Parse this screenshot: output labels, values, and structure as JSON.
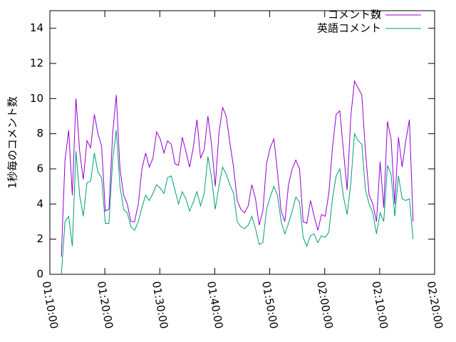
{
  "chart_data": {
    "type": "line",
    "ylabel": "1秒毎のコメント数",
    "xlim": [
      "01:10:00",
      "02:20:00"
    ],
    "xticks": [
      "01:10:00",
      "01:20:00",
      "01:30:00",
      "01:40:00",
      "01:50:00",
      "02:00:00",
      "02:10:00",
      "02:20:00"
    ],
    "ylim": [
      0,
      15
    ],
    "yticks": [
      0,
      2,
      4,
      6,
      8,
      10,
      12,
      14
    ],
    "legend": "top-right",
    "x": [
      "01:12:05",
      "01:12:45",
      "01:13:25",
      "01:14:05",
      "01:14:45",
      "01:15:25",
      "01:16:05",
      "01:16:45",
      "01:17:25",
      "01:18:05",
      "01:18:45",
      "01:19:25",
      "01:20:05",
      "01:20:45",
      "01:21:25",
      "01:22:05",
      "01:22:45",
      "01:23:25",
      "01:24:05",
      "01:24:45",
      "01:25:25",
      "01:26:05",
      "01:26:45",
      "01:27:25",
      "01:28:05",
      "01:28:45",
      "01:29:25",
      "01:30:05",
      "01:30:45",
      "01:31:25",
      "01:32:05",
      "01:32:45",
      "01:33:25",
      "01:34:05",
      "01:34:45",
      "01:35:25",
      "01:36:05",
      "01:36:45",
      "01:37:25",
      "01:38:05",
      "01:38:45",
      "01:39:25",
      "01:40:05",
      "01:40:45",
      "01:41:25",
      "01:42:05",
      "01:42:45",
      "01:43:25",
      "01:44:05",
      "01:44:45",
      "01:45:25",
      "01:46:05",
      "01:46:45",
      "01:47:25",
      "01:48:05",
      "01:48:45",
      "01:49:25",
      "01:50:05",
      "01:50:45",
      "01:51:25",
      "01:52:05",
      "01:52:45",
      "01:53:25",
      "01:54:05",
      "01:54:45",
      "01:55:25",
      "01:56:05",
      "01:56:45",
      "01:57:25",
      "01:58:05",
      "01:58:45",
      "01:59:25",
      "02:00:05",
      "02:00:45",
      "02:01:25",
      "02:02:05",
      "02:02:45",
      "02:03:25",
      "02:04:05",
      "02:04:45",
      "02:05:25",
      "02:06:05",
      "02:06:45",
      "02:07:25",
      "02:08:05",
      "02:08:45",
      "02:09:25",
      "02:10:05",
      "02:10:45",
      "02:11:25",
      "02:12:05",
      "02:12:45",
      "02:13:25",
      "02:14:05",
      "02:14:45",
      "02:15:25",
      "02:16:05"
    ],
    "series": [
      {
        "name": "コメント数",
        "color": "#9400d3",
        "values": [
          1.0,
          6.5,
          8.2,
          4.5,
          10.0,
          7.0,
          5.4,
          7.6,
          7.2,
          9.1,
          8.0,
          7.3,
          3.6,
          3.7,
          8.0,
          10.2,
          6.0,
          4.5,
          4.0,
          3.0,
          3.0,
          4.0,
          6.0,
          6.9,
          6.1,
          6.6,
          8.1,
          7.7,
          6.9,
          7.6,
          7.4,
          6.3,
          6.2,
          7.8,
          7.0,
          6.1,
          7.2,
          8.8,
          6.6,
          7.1,
          9.0,
          7.4,
          5.0,
          8.0,
          9.5,
          9.0,
          7.5,
          6.1,
          4.2,
          3.7,
          3.5,
          3.9,
          5.1,
          4.3,
          2.8,
          3.6,
          6.3,
          7.2,
          7.7,
          5.8,
          3.6,
          3.0,
          5.1,
          6.0,
          6.5,
          6.0,
          3.0,
          2.9,
          4.2,
          3.3,
          2.5,
          3.4,
          3.3,
          4.6,
          7.2,
          9.1,
          9.3,
          7.0,
          4.8,
          9.0,
          11.0,
          10.6,
          10.2,
          7.0,
          4.5,
          4.0,
          3.0,
          6.4,
          3.8,
          8.7,
          7.7,
          4.0,
          7.8,
          6.1,
          7.6,
          8.8,
          3.0
        ]
      },
      {
        "name": "英語コメント",
        "color": "#009e73",
        "values": [
          0.0,
          3.0,
          3.3,
          1.6,
          7.0,
          4.5,
          3.3,
          5.2,
          5.3,
          6.9,
          5.8,
          5.5,
          2.9,
          2.9,
          6.5,
          8.2,
          5.0,
          3.7,
          3.5,
          2.7,
          2.5,
          3.0,
          3.8,
          4.5,
          4.2,
          4.6,
          5.1,
          4.9,
          4.6,
          5.5,
          5.6,
          4.8,
          4.0,
          4.7,
          4.3,
          3.6,
          4.1,
          4.7,
          3.9,
          4.6,
          6.7,
          5.5,
          3.7,
          5.0,
          6.1,
          5.7,
          5.1,
          4.6,
          3.0,
          2.7,
          2.6,
          2.8,
          3.3,
          2.6,
          1.7,
          1.8,
          3.7,
          4.4,
          5.0,
          4.5,
          3.0,
          2.3,
          2.9,
          3.6,
          4.4,
          4.1,
          2.1,
          1.6,
          2.2,
          2.3,
          1.8,
          2.2,
          2.1,
          2.4,
          4.3,
          5.6,
          6.0,
          4.4,
          3.4,
          5.2,
          8.0,
          7.6,
          7.4,
          4.8,
          4.0,
          3.5,
          2.3,
          3.5,
          3.0,
          6.2,
          5.7,
          3.3,
          5.6,
          4.3,
          4.2,
          4.3,
          2.0
        ]
      }
    ]
  }
}
